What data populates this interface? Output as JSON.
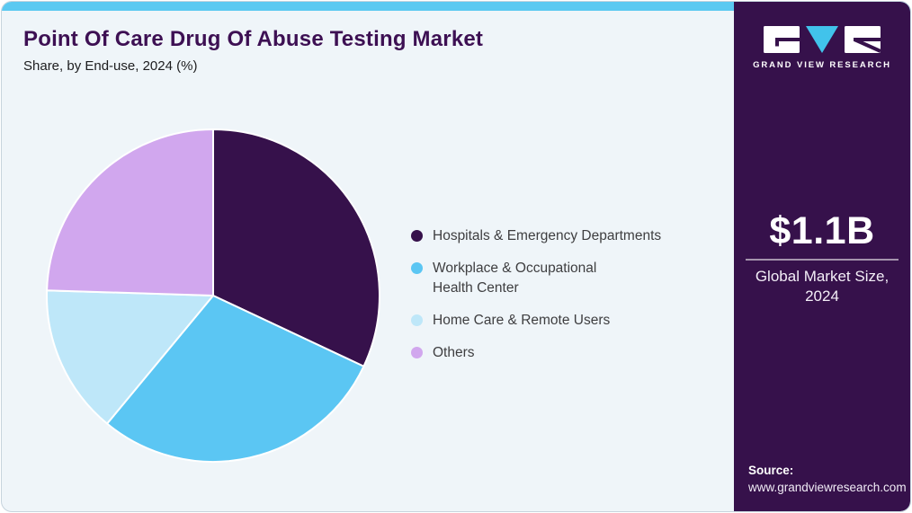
{
  "theme": {
    "card_bg": "#eff5f9",
    "card_border": "#c7d4dd",
    "strip": "#5bc9f1",
    "title_color": "#3d1053",
    "sidebar_bg": "#36114b"
  },
  "header": {
    "title": "Point Of Care Drug Of Abuse Testing Market",
    "subtitle": "Share, by End-use, 2024 (%)"
  },
  "chart_data": {
    "type": "pie",
    "title": "Point Of Care Drug Of Abuse Testing Market Share, by End-use, 2024 (%)",
    "categories": [
      "Hospitals & Emergency Departments",
      "Workplace & Occupational Health Center",
      "Home Care & Remote Users",
      "Others"
    ],
    "values": [
      32,
      29,
      14.5,
      24.5
    ],
    "unit": "%",
    "colors": [
      "#36114b",
      "#5bc6f3",
      "#bee7f9",
      "#d1a7ee"
    ],
    "start_angle_deg": 0,
    "direction": "clockwise",
    "slice_separator_color": "#ffffff",
    "legend_position": "right",
    "data_labels_shown": false
  },
  "sidebar": {
    "logo": {
      "brand": "GRAND VIEW RESEARCH",
      "triangle_color": "#41c3eb"
    },
    "stat": {
      "value": "$1.1B",
      "label": "Global Market Size, 2024"
    },
    "source": {
      "label": "Source:",
      "url": "www.grandviewresearch.com"
    }
  }
}
